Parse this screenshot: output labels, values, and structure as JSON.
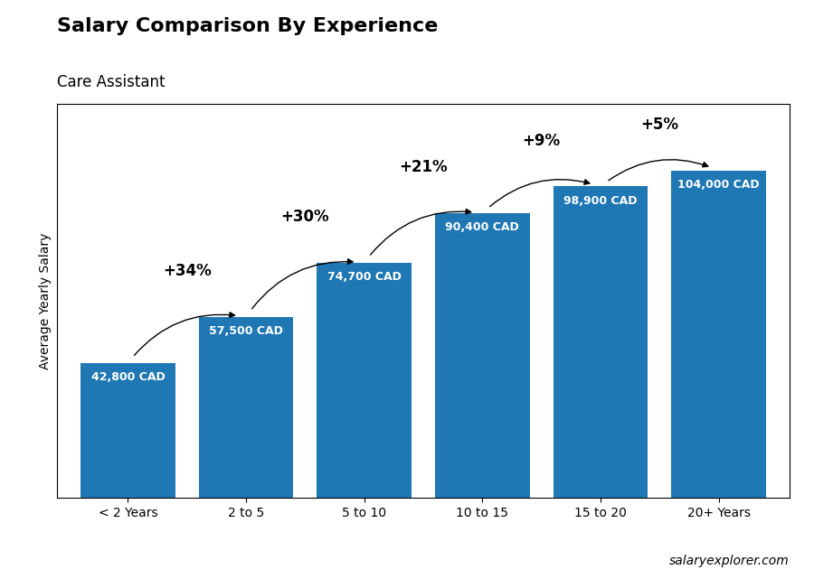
{
  "chart_data": {
    "type": "bar",
    "title": "Salary Comparison By Experience",
    "subtitle": "Care Assistant",
    "y_label": "Average Yearly Salary",
    "categories": [
      "< 2 Years",
      "2 to 5",
      "5 to 10",
      "10 to 15",
      "15 to 20",
      "20+ Years"
    ],
    "values": [
      42800,
      57500,
      74700,
      90400,
      98900,
      104000
    ],
    "value_labels": [
      "42,800 CAD",
      "57,500 CAD",
      "74,700 CAD",
      "90,400 CAD",
      "98,900 CAD",
      "104,000 CAD"
    ],
    "data_labels": true,
    "annotations": [
      "+34%",
      "+30%",
      "+21%",
      "+9%",
      "+5%"
    ],
    "footer": "salaryexplorer.com",
    "ylim": [
      0,
      125000
    ],
    "tick_labels": "x",
    "grid": false
  }
}
